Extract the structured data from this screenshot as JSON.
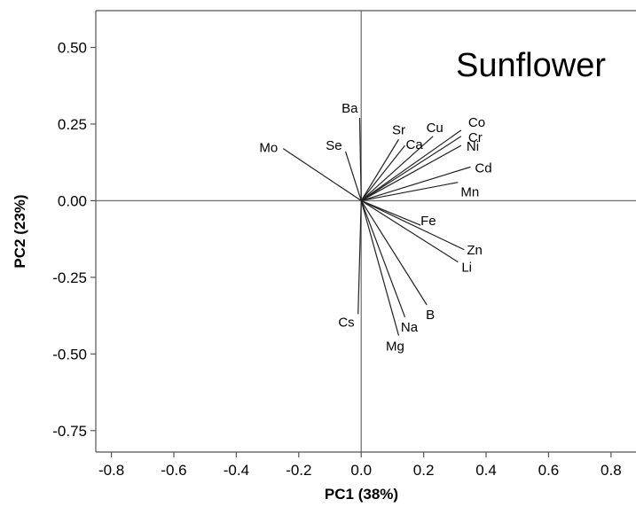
{
  "chart_data": {
    "type": "scatter",
    "subtype": "biplot-loadings",
    "title": "Sunflower",
    "xlabel": "PC1 (38%)",
    "ylabel": "PC2 (23%)",
    "xlim": [
      -0.85,
      0.88
    ],
    "ylim": [
      -0.82,
      0.62
    ],
    "x_ticks": [
      -0.8,
      -0.6,
      -0.4,
      -0.2,
      0.0,
      0.2,
      0.4,
      0.6,
      0.8
    ],
    "x_tick_labels": [
      "-0.8",
      "-0.6",
      "-0.4",
      "-0.2",
      "0.0",
      "0.2",
      "0.4",
      "0.6",
      "0.8"
    ],
    "y_ticks": [
      0.5,
      0.25,
      0.0,
      -0.25,
      -0.5,
      -0.75
    ],
    "y_tick_labels": [
      "0.50",
      "0.25",
      "0.00",
      "-0.25",
      "-0.50",
      "-0.75"
    ],
    "grid": false,
    "reference_lines": {
      "x": 0,
      "y": 0
    },
    "vectors": [
      {
        "name": "Mo",
        "x": -0.25,
        "y": 0.17
      },
      {
        "name": "Se",
        "x": -0.05,
        "y": 0.16
      },
      {
        "name": "Ba",
        "x": -0.005,
        "y": 0.27
      },
      {
        "name": "Sr",
        "x": 0.12,
        "y": 0.2
      },
      {
        "name": "Ca",
        "x": 0.14,
        "y": 0.18
      },
      {
        "name": "Cu",
        "x": 0.23,
        "y": 0.21
      },
      {
        "name": "Co",
        "x": 0.32,
        "y": 0.23
      },
      {
        "name": "Cr",
        "x": 0.32,
        "y": 0.21
      },
      {
        "name": "Ni",
        "x": 0.32,
        "y": 0.18
      },
      {
        "name": "Cd",
        "x": 0.35,
        "y": 0.11
      },
      {
        "name": "Mn",
        "x": 0.31,
        "y": 0.06
      },
      {
        "name": "Fe",
        "x": 0.19,
        "y": -0.08
      },
      {
        "name": "Zn",
        "x": 0.33,
        "y": -0.16
      },
      {
        "name": "Li",
        "x": 0.31,
        "y": -0.2
      },
      {
        "name": "B",
        "x": 0.21,
        "y": -0.34
      },
      {
        "name": "Na",
        "x": 0.14,
        "y": -0.38
      },
      {
        "name": "Mg",
        "x": 0.12,
        "y": -0.44
      },
      {
        "name": "Cs",
        "x": -0.01,
        "y": -0.37
      }
    ]
  }
}
